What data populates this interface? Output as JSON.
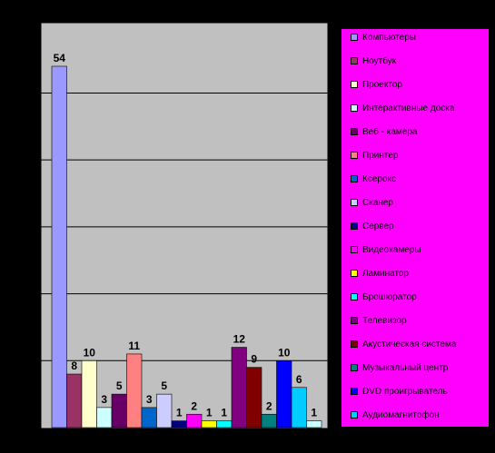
{
  "chart_data": {
    "type": "bar",
    "title": "",
    "xlabel": "",
    "ylabel": "",
    "ylim": [
      0,
      54
    ],
    "grid": true,
    "legend_position": "right",
    "plot_background": "#c0c0c0",
    "legend_background": "#ff00ff",
    "series": [
      {
        "name": "Компьютеры",
        "value": 54,
        "color": "#9999ff"
      },
      {
        "name": "Ноутбук",
        "value": 8,
        "color": "#993366"
      },
      {
        "name": "Проектор",
        "value": 10,
        "color": "#ffffcc"
      },
      {
        "name": "Интерактивные доска",
        "value": 3,
        "color": "#ccffff"
      },
      {
        "name": "Веб - камера",
        "value": 5,
        "color": "#660066"
      },
      {
        "name": "Принтер",
        "value": 11,
        "color": "#ff8080"
      },
      {
        "name": "Ксерокс",
        "value": 3,
        "color": "#0066cc"
      },
      {
        "name": "Сканер",
        "value": 5,
        "color": "#ccccff"
      },
      {
        "name": "Сервер",
        "value": 1,
        "color": "#000080"
      },
      {
        "name": "Видеокамеры",
        "value": 2,
        "color": "#ff00ff"
      },
      {
        "name": "Ламинатор",
        "value": 1,
        "color": "#ffff00"
      },
      {
        "name": "Брошюратор",
        "value": 1,
        "color": "#00ffff"
      },
      {
        "name": "Телевизор",
        "value": 12,
        "color": "#800080"
      },
      {
        "name": "Акустическая система",
        "value": 9,
        "color": "#800000"
      },
      {
        "name": "Музыкальный центр",
        "value": 2,
        "color": "#008080"
      },
      {
        "name": "DVD проигрыватель",
        "value": 10,
        "color": "#0000ff"
      },
      {
        "name": "Аудиомагнитофон",
        "value": 6,
        "color": "#00ccff"
      },
      {
        "name": "",
        "value": 1,
        "color": "#ccffff"
      }
    ]
  }
}
